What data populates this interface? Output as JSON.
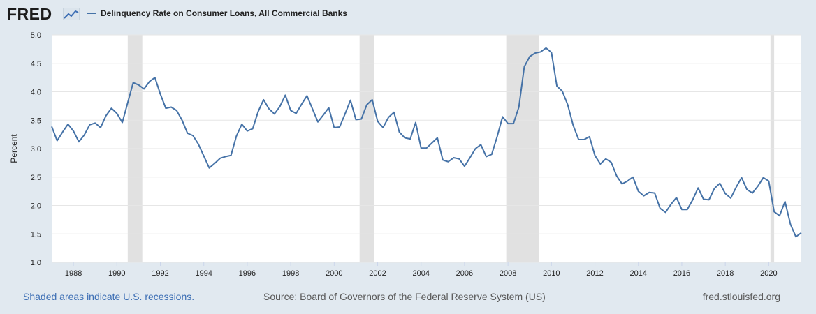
{
  "header": {
    "logo_text": "FRED"
  },
  "chart_data": {
    "type": "line",
    "title": "",
    "ylabel": "Percent",
    "xlabel": "",
    "ylim": [
      1.0,
      5.0
    ],
    "yticks": [
      "1.0",
      "1.5",
      "2.0",
      "2.5",
      "3.0",
      "3.5",
      "4.0",
      "4.5",
      "5.0"
    ],
    "xticks": [
      "1988",
      "1990",
      "1992",
      "1994",
      "1996",
      "1998",
      "2000",
      "2002",
      "2004",
      "2006",
      "2008",
      "2010",
      "2012",
      "2014",
      "2016",
      "2018",
      "2020"
    ],
    "grid": true,
    "legend": "top-left",
    "series": [
      {
        "name": "Delinquency Rate on Consumer Loans, All Commercial Banks",
        "color": "#4572a7",
        "values": [
          3.39,
          3.14,
          3.29,
          3.43,
          3.31,
          3.12,
          3.24,
          3.42,
          3.45,
          3.37,
          3.58,
          3.71,
          3.62,
          3.46,
          3.81,
          4.16,
          4.12,
          4.05,
          4.18,
          4.25,
          3.96,
          3.71,
          3.73,
          3.67,
          3.5,
          3.27,
          3.23,
          3.08,
          2.87,
          2.66,
          2.74,
          2.83,
          2.86,
          2.88,
          3.22,
          3.43,
          3.31,
          3.35,
          3.65,
          3.86,
          3.7,
          3.61,
          3.74,
          3.94,
          3.67,
          3.62,
          3.78,
          3.93,
          3.7,
          3.47,
          3.59,
          3.72,
          3.37,
          3.38,
          3.61,
          3.85,
          3.51,
          3.52,
          3.77,
          3.86,
          3.48,
          3.37,
          3.55,
          3.64,
          3.29,
          3.19,
          3.17,
          3.46,
          3.01,
          3.01,
          3.1,
          3.19,
          2.8,
          2.77,
          2.84,
          2.82,
          2.69,
          2.84,
          3.0,
          3.07,
          2.86,
          2.9,
          3.21,
          3.56,
          3.44,
          3.44,
          3.73,
          4.44,
          4.62,
          4.68,
          4.7,
          4.77,
          4.69,
          4.1,
          4.01,
          3.77,
          3.41,
          3.16,
          3.16,
          3.21,
          2.88,
          2.73,
          2.82,
          2.76,
          2.52,
          2.38,
          2.43,
          2.5,
          2.25,
          2.17,
          2.23,
          2.22,
          1.95,
          1.88,
          2.02,
          2.14,
          1.93,
          1.93,
          2.1,
          2.31,
          2.11,
          2.1,
          2.3,
          2.39,
          2.21,
          2.13,
          2.32,
          2.49,
          2.28,
          2.22,
          2.34,
          2.49,
          2.43,
          1.89,
          1.82,
          2.07,
          1.67,
          1.45,
          1.52
        ]
      }
    ],
    "x_range": [
      1987.0,
      2021.5
    ],
    "recessions": [
      [
        1990.5,
        1991.17
      ],
      [
        2001.17,
        2001.83
      ],
      [
        2007.92,
        2009.42
      ],
      [
        2020.08,
        2020.25
      ]
    ]
  },
  "footer": {
    "recession_note": "Shaded areas indicate U.S. recessions.",
    "source": "Source: Board of Governors of the Federal Reserve System (US)",
    "site": "fred.stlouisfed.org"
  }
}
